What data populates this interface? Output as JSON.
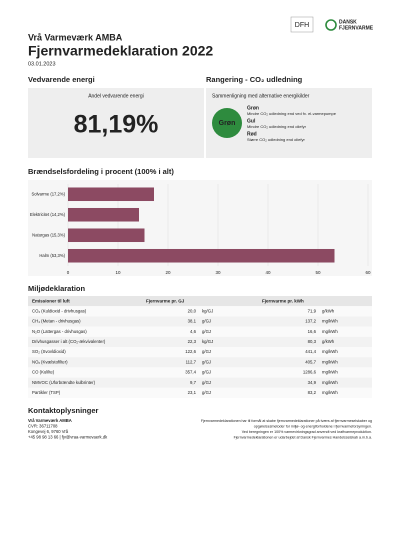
{
  "header": {
    "org": "Vrå Varmeværk AMBA",
    "title": "Fjernvarmedeklaration 2022",
    "date": "03.01.2023"
  },
  "logos": {
    "dfh": "DFH",
    "dansk": [
      "DANSK",
      "FJERNVARME"
    ]
  },
  "renewable": {
    "heading": "Vedvarende energi",
    "label": "Andel vedvarende energi",
    "value": "81,19%"
  },
  "ranking": {
    "heading": "Rangering - CO₂ udledning",
    "subtitle": "Sammenligning med alternative energikilder",
    "badge": "Grøn",
    "badge_color": "#2e8b3e",
    "legend": [
      {
        "name": "Grøn",
        "color": "#2e8b3e",
        "text": "Mindre CO₂ udledning end ved fx. el-varmepumpe"
      },
      {
        "name": "Gul",
        "color": "#d8b800",
        "text": "Mindre CO₂ udledning end oliefyr"
      },
      {
        "name": "Rød",
        "color": "#c0141c",
        "text": "Større CO₂ udledning end oliefyr"
      }
    ]
  },
  "fuel_chart": {
    "type": "bar",
    "title": "Brændselsfordeling i procent (100% i alt)",
    "categories": [
      "Solvarme (17,2%)",
      "Elektricitet (14,2%)",
      "Naturgas (15,3%)",
      "Halm (53,3%)"
    ],
    "values": [
      17.2,
      14.2,
      15.3,
      53.3
    ],
    "color": "#8c4a62",
    "xlim": [
      0,
      60
    ],
    "xticks": [
      0,
      10,
      20,
      30,
      40,
      50,
      60
    ],
    "grid": true
  },
  "emissions": {
    "heading": "Miljødeklaration",
    "columns": [
      "Emissioner til luft",
      "Fjernvarme pr. GJ",
      "Fjernvarme pr. kWh"
    ],
    "rows": [
      [
        "CO₂ (Kuldioxid - drivhusgas)",
        "20,0",
        "kg/GJ",
        "71,9",
        "g/kWh"
      ],
      [
        "CH₄ (Metan - drivhusgas)",
        "38,1",
        "g/GJ",
        "137,2",
        "mg/kWh"
      ],
      [
        "N₂O (Lattergas - drivhusgas)",
        "4,6",
        "g/GJ",
        "16,6",
        "mg/kWh"
      ],
      [
        "Drivhusgasser i alt (CO₂-ækvivalenter)",
        "22,3",
        "kg/GJ",
        "80,3",
        "g/kWh"
      ],
      [
        "SO₂ (Svovldioxid)",
        "122,6",
        "g/GJ",
        "441,4",
        "mg/kWh"
      ],
      [
        "NOₓ (Kvælstofilter)",
        "112,7",
        "g/GJ",
        "405,7",
        "mg/kWh"
      ],
      [
        "CO (Kulilte)",
        "357,4",
        "g/GJ",
        "1286,6",
        "mg/kWh"
      ],
      [
        "NMVOC (Uforbrændte kulbrinter)",
        "9,7",
        "g/GJ",
        "34,9",
        "mg/kWh"
      ],
      [
        "Partikler (TSP)",
        "23,1",
        "g/GJ",
        "83,2",
        "mg/kWh"
      ]
    ]
  },
  "contact": {
    "heading": "Kontaktoplysninger",
    "lines": [
      "Vrå Varmeværk AMBA",
      "CVR: 36711708",
      "Kongevej 6, 9760 Vrå",
      "+45 98 98 13 66 | fjv@vraa-varmevaerk.dk"
    ],
    "note": [
      "Fjernvarmedeklarationen har til formål at skabe fjernvarmedeklarationer på tværs af fjernvarmeselskaber og",
      "opgørelsesmetoder for miljø- og energiforholdene i fjernvarmeforsyningen.",
      "Ved beregningen er 100% varmevirkningsgrad anvendt ved kraftvarmeproduktion.",
      "Fjernvarmedeklarationen er udarbejdet af Dansk Fjernvarmes Handelsselskab a.m.b.a."
    ]
  }
}
